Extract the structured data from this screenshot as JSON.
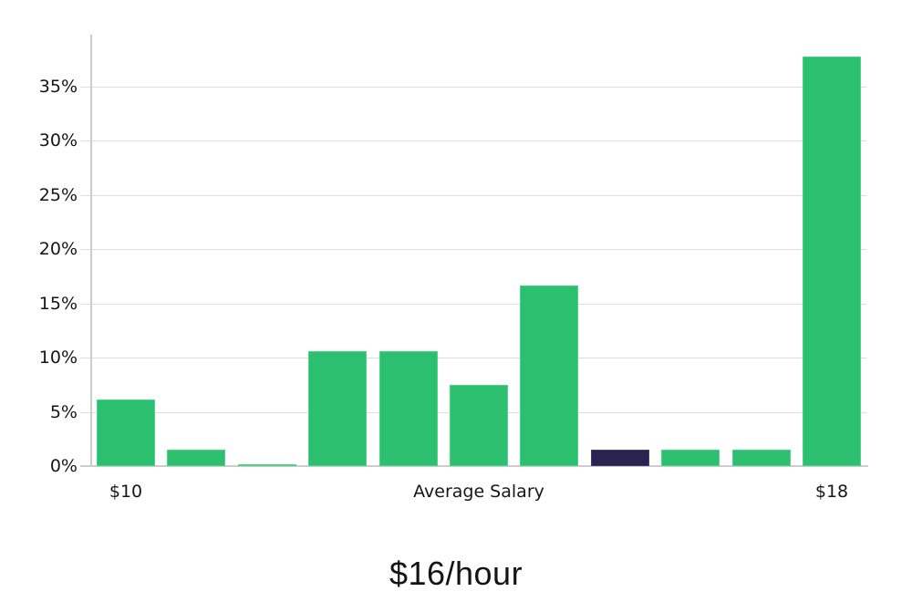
{
  "chart_data": {
    "type": "bar",
    "title": "$16/hour",
    "ylabel": "",
    "xlabel": "",
    "ylim": [
      0,
      39.8
    ],
    "grid": "horizontal",
    "legend": "none",
    "values": [
      6.1,
      1.5,
      0.15,
      10.6,
      10.6,
      7.5,
      16.7,
      1.5,
      1.5,
      1.5,
      37.8
    ],
    "highlighted_index": 7,
    "y_ticks": [
      {
        "value": 0,
        "label": "0%"
      },
      {
        "value": 5,
        "label": "5%"
      },
      {
        "value": 10,
        "label": "10%"
      },
      {
        "value": 15,
        "label": "15%"
      },
      {
        "value": 20,
        "label": "20%"
      },
      {
        "value": 25,
        "label": "25%"
      },
      {
        "value": 30,
        "label": "30%"
      },
      {
        "value": 35,
        "label": "35%"
      }
    ],
    "x_tick_labels": [
      {
        "bar_index": 0,
        "label": "$10"
      },
      {
        "bar_index": 5,
        "label": "Average Salary"
      },
      {
        "bar_index": 10,
        "label": "$18"
      }
    ],
    "colors": {
      "bar_fill": "#2cbf70",
      "bar_edge": "#4ad586",
      "highlight_fill": "#2a2350",
      "highlight_edge": "#443d6d",
      "gridline": "#dedede",
      "axis": "#cccccc",
      "text": "#161616"
    }
  }
}
